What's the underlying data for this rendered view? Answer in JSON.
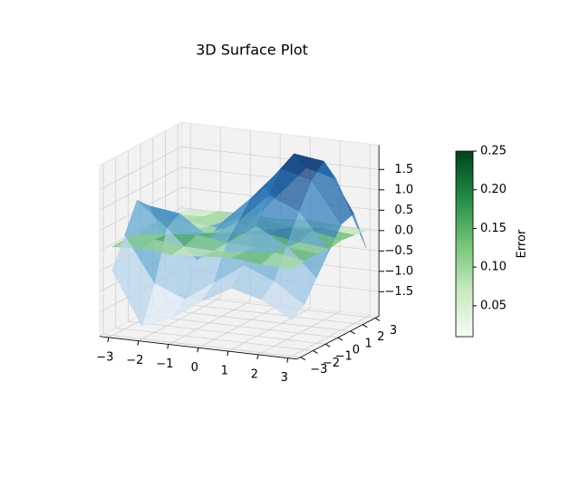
{
  "chart_data": {
    "type": "surface3d",
    "title": "3D Surface Plot",
    "x": [
      -3,
      -2,
      -1,
      0,
      1,
      2,
      3
    ],
    "y": [
      -3,
      -2,
      -1,
      0,
      1,
      2,
      3
    ],
    "z": [
      [
        -0.5,
        -1.8,
        -1.5,
        -1.0,
        -0.6,
        -0.8,
        -1.2
      ],
      [
        0.2,
        -0.9,
        -1.2,
        -0.7,
        -0.2,
        -0.5,
        -1.0
      ],
      [
        0.9,
        0.3,
        -0.4,
        0.1,
        0.6,
        0.2,
        -0.5
      ],
      [
        0.6,
        0.5,
        0.0,
        0.5,
        1.2,
        0.9,
        0.0
      ],
      [
        -0.2,
        -0.1,
        0.2,
        0.9,
        1.7,
        1.5,
        0.5
      ],
      [
        -0.8,
        -0.6,
        0.1,
        1.0,
        1.9,
        1.8,
        0.6
      ],
      [
        -1.2,
        -1.0,
        -0.2,
        0.6,
        1.4,
        1.2,
        -0.4
      ]
    ],
    "error": [
      [
        0.08,
        0.12,
        0.05,
        0.1,
        0.15,
        0.07,
        0.04
      ],
      [
        0.1,
        0.18,
        0.09,
        0.06,
        0.12,
        0.2,
        0.08
      ],
      [
        0.05,
        0.14,
        0.22,
        0.11,
        0.07,
        0.16,
        0.1
      ],
      [
        0.12,
        0.06,
        0.1,
        0.19,
        0.24,
        0.13,
        0.05
      ],
      [
        0.09,
        0.15,
        0.04,
        0.08,
        0.21,
        0.25,
        0.11
      ],
      [
        0.06,
        0.1,
        0.13,
        0.17,
        0.09,
        0.14,
        0.07
      ],
      [
        0.03,
        0.07,
        0.11,
        0.05,
        0.12,
        0.08,
        0.02
      ]
    ],
    "cmap": [
      "#f7fbff",
      "#c6dbef",
      "#6baed6",
      "#2171b5",
      "#08306b"
    ],
    "error_cmap": [
      "#f7fcf5",
      "#c7e9c0",
      "#74c476",
      "#238b45",
      "#00441b"
    ],
    "opacity": 0.75,
    "xlim": [
      -3.3,
      3.3
    ],
    "ylim": [
      -3.3,
      3.3
    ],
    "zlim": [
      -2.1,
      2.1
    ],
    "xticks": [
      {
        "value": -3,
        "label": "−3"
      },
      {
        "value": -2,
        "label": "−2"
      },
      {
        "value": -1,
        "label": "−1"
      },
      0,
      1,
      2,
      3
    ],
    "yticks": [
      {
        "value": -3,
        "label": "−3"
      },
      {
        "value": -2,
        "label": "−2"
      },
      {
        "value": -1,
        "label": "−1"
      },
      0,
      1,
      2,
      3
    ],
    "zticks": [
      {
        "value": -1.5,
        "label": "−1.5"
      },
      {
        "value": -1.0,
        "label": "−1.0"
      },
      {
        "value": -0.5,
        "label": "−0.5"
      },
      {
        "value": 0.0,
        "label": "0.0"
      },
      0.5,
      {
        "value": 1.0,
        "label": "1.0"
      },
      1.5
    ],
    "colorbar": {
      "label": "Error",
      "lim": [
        0.01,
        0.25
      ],
      "ticks": [
        0.05,
        {
          "value": 0.1,
          "label": "0.10"
        },
        0.15,
        {
          "value": 0.2,
          "label": "0.20"
        },
        0.25
      ]
    }
  }
}
